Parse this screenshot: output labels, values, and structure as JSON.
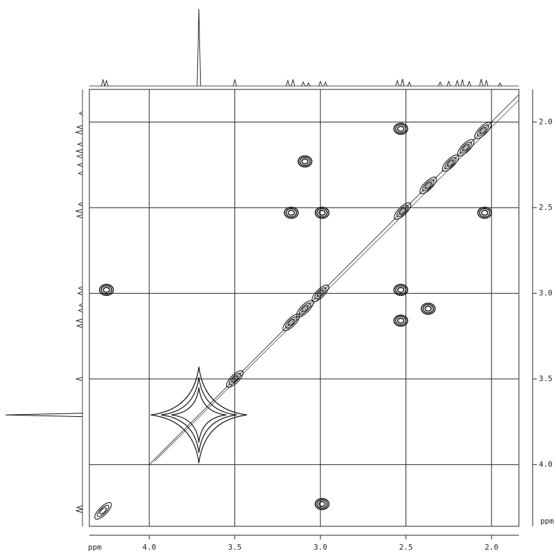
{
  "chart_data": {
    "type": "contour",
    "x_label": "ppm",
    "y_label": "ppm",
    "xlim": [
      4.35,
      1.84
    ],
    "ylim": [
      1.81,
      4.36
    ],
    "xticks": [
      {
        "value": 4,
        "label": "4.0"
      },
      3.5,
      {
        "value": 3,
        "label": "3.0"
      },
      2.5,
      {
        "value": 2,
        "label": "2.0"
      }
    ],
    "yticks": [
      {
        "value": 2,
        "label": "2.0"
      },
      2.5,
      {
        "value": 3,
        "label": "3.0"
      },
      3.5,
      {
        "value": 4,
        "label": "4.0"
      }
    ],
    "grid": true,
    "color": "#111111",
    "cross_peaks": {
      "x": [
        2.53,
        3.09,
        3.17,
        2.99,
        2.04,
        4.25,
        2.53,
        2.53,
        2.37,
        2.99
      ],
      "y": [
        2.04,
        2.23,
        2.53,
        2.53,
        2.53,
        2.98,
        2.98,
        3.16,
        3.09,
        4.23
      ]
    },
    "diagonal_peaks": [
      4.27,
      3.71,
      3.5,
      3.17,
      3.09,
      3.0,
      2.52,
      2.37,
      2.24,
      2.15,
      2.05
    ],
    "projection": {
      "x": [
        4.27,
        4.25,
        3.71,
        3.5,
        3.19,
        3.16,
        3.1,
        3.07,
        3.0,
        2.97,
        2.55,
        2.52,
        2.48,
        2.3,
        2.25,
        2.2,
        2.17,
        2.13,
        2.06,
        2.03,
        1.95
      ],
      "heights": [
        8,
        7,
        100,
        8,
        7,
        8,
        5,
        4,
        6,
        5,
        7,
        9,
        5,
        5,
        6,
        7,
        8,
        6,
        9,
        7,
        4
      ]
    }
  }
}
